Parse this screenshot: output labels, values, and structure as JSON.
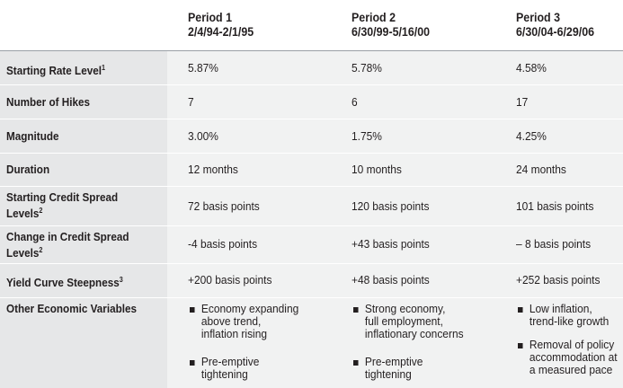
{
  "periods": [
    {
      "name": "Period 1",
      "dates": "2/4/94-2/1/95"
    },
    {
      "name": "Period 2",
      "dates": "6/30/99-5/16/00"
    },
    {
      "name": "Period 3",
      "dates": "6/30/04-6/29/06"
    }
  ],
  "rows": [
    {
      "label": "Starting Rate Level",
      "sup": "1",
      "values": [
        "5.87%",
        "5.78%",
        "4.58%"
      ]
    },
    {
      "label": "Number of Hikes",
      "sup": "",
      "values": [
        "7",
        "6",
        "17"
      ]
    },
    {
      "label": "Magnitude",
      "sup": "",
      "values": [
        "3.00%",
        "1.75%",
        "4.25%"
      ]
    },
    {
      "label": "Duration",
      "sup": "",
      "values": [
        "12 months",
        "10 months",
        "24 months"
      ]
    },
    {
      "label_lines": [
        "Starting Credit Spread",
        "Levels"
      ],
      "sup": "2",
      "values": [
        "72 basis points",
        "120 basis points",
        "101 basis points"
      ]
    },
    {
      "label_lines": [
        "Change in Credit Spread",
        "Levels"
      ],
      "sup": "2",
      "values": [
        "-4 basis points",
        "+43 basis points",
        "– 8 basis points"
      ]
    },
    {
      "label": "Yield Curve Steepness",
      "sup": "3",
      "values": [
        "+200 basis points",
        "+48 basis points",
        "+252 basis points"
      ]
    }
  ],
  "other": {
    "label": "Other Economic Variables",
    "bullets": [
      [
        [
          "Economy expanding",
          "above trend,",
          "inflation rising"
        ],
        [
          "Pre-emptive",
          "tightening"
        ]
      ],
      [
        [
          "Strong economy,",
          "full employment,",
          "inflationary concerns"
        ],
        [
          "Pre-emptive",
          "tightening"
        ]
      ],
      [
        [
          "Low inflation,",
          "trend-like growth"
        ],
        [
          "Removal of policy",
          "accommodation at",
          "a measured pace"
        ]
      ]
    ]
  }
}
